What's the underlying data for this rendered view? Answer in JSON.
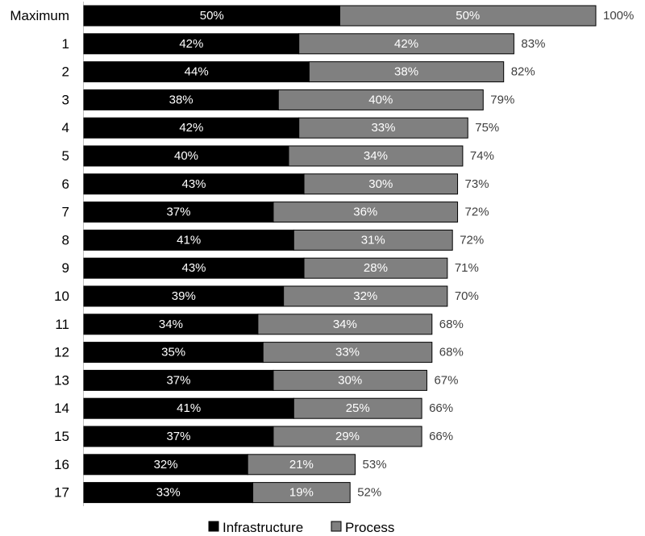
{
  "chart_data": {
    "type": "bar",
    "orientation": "horizontal",
    "stacked": true,
    "categories": [
      "Maximum",
      "1",
      "2",
      "3",
      "4",
      "5",
      "6",
      "7",
      "8",
      "9",
      "10",
      "11",
      "12",
      "13",
      "14",
      "15",
      "16",
      "17"
    ],
    "series": [
      {
        "name": "Infrastructure",
        "color": "#000000",
        "values": [
          50,
          42,
          44,
          38,
          42,
          40,
          43,
          37,
          41,
          43,
          39,
          34,
          35,
          37,
          41,
          37,
          32,
          33
        ],
        "labels": [
          "50%",
          "42%",
          "44%",
          "38%",
          "42%",
          "40%",
          "43%",
          "37%",
          "41%",
          "43%",
          "39%",
          "34%",
          "35%",
          "37%",
          "41%",
          "37%",
          "32%",
          "33%"
        ]
      },
      {
        "name": "Process",
        "color": "#808080",
        "values": [
          50,
          42,
          38,
          40,
          33,
          34,
          30,
          36,
          31,
          28,
          32,
          34,
          33,
          30,
          25,
          29,
          21,
          19
        ],
        "labels": [
          "50%",
          "42%",
          "38%",
          "40%",
          "33%",
          "34%",
          "30%",
          "36%",
          "31%",
          "28%",
          "32%",
          "34%",
          "33%",
          "30%",
          "25%",
          "29%",
          "21%",
          "19%"
        ]
      }
    ],
    "totals": [
      "100%",
      "83%",
      "82%",
      "79%",
      "75%",
      "74%",
      "73%",
      "72%",
      "72%",
      "71%",
      "70%",
      "68%",
      "68%",
      "67%",
      "66%",
      "66%",
      "53%",
      "52%"
    ],
    "xlim": [
      0,
      100
    ],
    "grid": false,
    "legend_position": "bottom"
  }
}
